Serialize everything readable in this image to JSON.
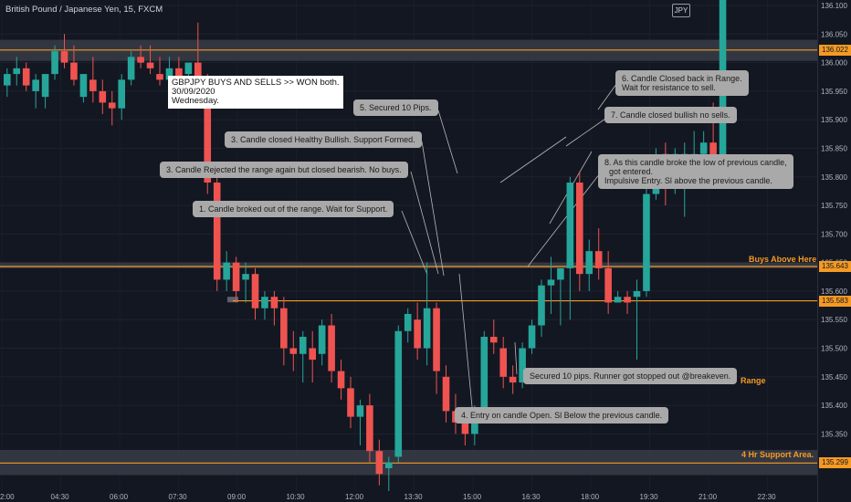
{
  "header": {
    "symbol_title": "British Pound / Japanese Yen, 15, FXCM",
    "currency_badge": "JPY"
  },
  "colors": {
    "background": "#131722",
    "bull": "#26a69a",
    "bear": "#ef5350",
    "zone_line": "#f59a23",
    "zone_band": "#363a45",
    "note_bg": "#a9a9a9",
    "axis_text": "#b2b5be"
  },
  "chart_data": {
    "type": "candlestick",
    "y_axis": {
      "position": "right",
      "range": [
        135.25,
        136.1
      ],
      "ticks": [
        136.1,
        136.05,
        136.0,
        135.95,
        135.9,
        135.85,
        135.8,
        135.75,
        135.7,
        135.65,
        135.6,
        135.55,
        135.5,
        135.45,
        135.4,
        135.35
      ]
    },
    "x_axis": {
      "ticks": [
        "2:00",
        "04:30",
        "06:00",
        "07:30",
        "09:00",
        "10:30",
        "12:00",
        "13:30",
        "15:00",
        "16:30",
        "18:00",
        "19:30",
        "21:00",
        "22:30"
      ]
    },
    "candles": [
      [
        135.96,
        135.99,
        135.94,
        135.98
      ],
      [
        135.98,
        136.01,
        135.96,
        135.99
      ],
      [
        135.99,
        136.0,
        135.95,
        135.96
      ],
      [
        135.95,
        135.98,
        135.92,
        135.97
      ],
      [
        135.94,
        135.98,
        135.92,
        135.98
      ],
      [
        135.98,
        136.03,
        135.97,
        136.02
      ],
      [
        136.02,
        136.05,
        135.99,
        136.0
      ],
      [
        136.0,
        136.03,
        135.96,
        135.97
      ],
      [
        135.94,
        135.98,
        135.93,
        135.98
      ],
      [
        135.97,
        136.01,
        135.93,
        135.95
      ],
      [
        135.95,
        135.97,
        135.91,
        135.93
      ],
      [
        135.93,
        135.95,
        135.89,
        135.92
      ],
      [
        135.92,
        135.98,
        135.9,
        135.97
      ],
      [
        135.97,
        136.02,
        135.96,
        136.01
      ],
      [
        136.01,
        136.03,
        135.99,
        136.0
      ],
      [
        136.0,
        136.03,
        135.98,
        135.99
      ],
      [
        135.98,
        136.01,
        135.96,
        135.97
      ],
      [
        135.97,
        136.01,
        135.95,
        135.99
      ],
      [
        135.99,
        136.01,
        135.96,
        135.97
      ],
      [
        135.98,
        136.0,
        135.96,
        136.0
      ],
      [
        136.0,
        136.07,
        135.96,
        135.96
      ],
      [
        135.96,
        135.98,
        135.77,
        135.79
      ],
      [
        135.79,
        135.8,
        135.6,
        135.62
      ],
      [
        135.62,
        135.67,
        135.6,
        135.65
      ],
      [
        135.65,
        135.66,
        135.58,
        135.6
      ],
      [
        135.62,
        135.65,
        135.58,
        135.63
      ],
      [
        135.63,
        135.64,
        135.55,
        135.57
      ],
      [
        135.57,
        135.6,
        135.55,
        135.59
      ],
      [
        135.59,
        135.6,
        135.54,
        135.57
      ],
      [
        135.57,
        135.59,
        135.47,
        135.5
      ],
      [
        135.5,
        135.53,
        135.46,
        135.49
      ],
      [
        135.49,
        135.53,
        135.44,
        135.52
      ],
      [
        135.5,
        135.53,
        135.44,
        135.48
      ],
      [
        135.49,
        135.55,
        135.47,
        135.54
      ],
      [
        135.54,
        135.56,
        135.44,
        135.46
      ],
      [
        135.46,
        135.48,
        135.41,
        135.43
      ],
      [
        135.43,
        135.45,
        135.36,
        135.38
      ],
      [
        135.38,
        135.41,
        135.33,
        135.4
      ],
      [
        135.4,
        135.42,
        135.3,
        135.32
      ],
      [
        135.32,
        135.34,
        135.26,
        135.28
      ],
      [
        135.29,
        135.31,
        135.25,
        135.3
      ],
      [
        135.31,
        135.54,
        135.3,
        135.53
      ],
      [
        135.53,
        135.57,
        135.51,
        135.56
      ],
      [
        135.55,
        135.58,
        135.48,
        135.5
      ],
      [
        135.5,
        135.65,
        135.47,
        135.57
      ],
      [
        135.57,
        135.58,
        135.42,
        135.46
      ],
      [
        135.45,
        135.47,
        135.37,
        135.39
      ],
      [
        135.39,
        135.42,
        135.35,
        135.37
      ],
      [
        135.37,
        135.39,
        135.33,
        135.35
      ],
      [
        135.35,
        135.4,
        135.33,
        135.38
      ],
      [
        135.38,
        135.53,
        135.37,
        135.52
      ],
      [
        135.52,
        135.55,
        135.49,
        135.51
      ],
      [
        135.5,
        135.52,
        135.43,
        135.45
      ],
      [
        135.45,
        135.47,
        135.42,
        135.44
      ],
      [
        135.44,
        135.51,
        135.43,
        135.5
      ],
      [
        135.5,
        135.55,
        135.49,
        135.54
      ],
      [
        135.54,
        135.62,
        135.52,
        135.61
      ],
      [
        135.61,
        135.66,
        135.56,
        135.62
      ],
      [
        135.62,
        135.64,
        135.54,
        135.64
      ],
      [
        135.64,
        135.8,
        135.55,
        135.79
      ],
      [
        135.79,
        135.81,
        135.6,
        135.63
      ],
      [
        135.63,
        135.69,
        135.6,
        135.67
      ],
      [
        135.67,
        135.71,
        135.62,
        135.64
      ],
      [
        135.64,
        135.67,
        135.56,
        135.58
      ],
      [
        135.58,
        135.6,
        135.58,
        135.59
      ],
      [
        135.59,
        135.6,
        135.56,
        135.58
      ],
      [
        135.59,
        135.62,
        135.48,
        135.6
      ],
      [
        135.6,
        135.78,
        135.59,
        135.77
      ],
      [
        135.77,
        135.85,
        135.76,
        135.83
      ],
      [
        135.84,
        135.86,
        135.75,
        135.78
      ],
      [
        135.78,
        135.85,
        135.77,
        135.84
      ],
      [
        135.84,
        135.86,
        135.73,
        135.84
      ],
      [
        135.82,
        135.88,
        135.8,
        135.84
      ],
      [
        135.84,
        135.88,
        135.82,
        135.86
      ],
      [
        135.86,
        135.93,
        135.79,
        135.8
      ],
      [
        135.8,
        136.12,
        135.78,
        136.12
      ]
    ],
    "horizontal_lines": [
      {
        "label": "Buys Above Here",
        "price": 135.643,
        "price_text": "135.643"
      },
      {
        "label": "Range",
        "price": 135.583,
        "price_text": "135.583"
      },
      {
        "label": "4 Hr Support Area.",
        "price": 135.299,
        "price_text": "135.299"
      },
      {
        "label": "",
        "price": 136.022,
        "price_text": "136.022"
      }
    ],
    "zones": [
      {
        "from": 136.003,
        "to": 136.04
      },
      {
        "from": 135.64,
        "to": 135.65
      },
      {
        "from": 135.278,
        "to": 135.322
      }
    ]
  },
  "annotations": {
    "title_note": "GBPJPY BUYS AND SELLS >> WON both.\n30/09/2020\nWednesday.",
    "note1": "1. Candle broked out of the range. Wait for Support.",
    "note3a": "3. Candle closed Healthy Bullish. Support Formed.",
    "note3b": "3. Candle Rejected the range again but closed bearish. No buys.",
    "note4": "4. Entry on candle Open. Sl Below the previous candle.",
    "note5": "5. Secured 10 Pips.",
    "note6": "6. Candle Closed back in Range.\nWait for resistance to sell.",
    "note7": "7. Candle closed bullish no sells.",
    "note8": "8. As this candle broke the low of previous candle,\n  got entered.\nImpulsive Entry. Sl above the previous candle.",
    "note_runner": "Secured 10 pips. Runner got stopped out @breakeven."
  }
}
